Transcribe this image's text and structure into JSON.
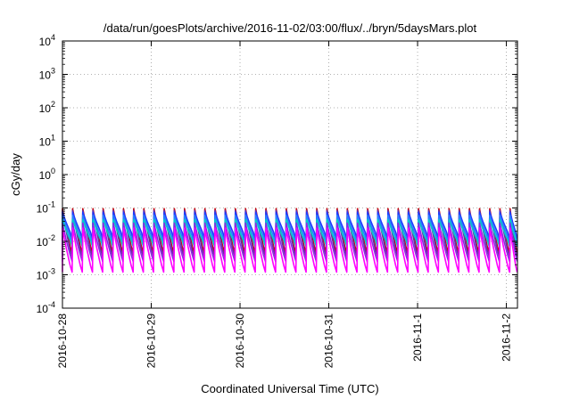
{
  "chart_data": {
    "type": "line",
    "title": "/data/run/goesPlots/archive/2016-11-02/03:00/flux/../bryn/5daysMars.plot",
    "xlabel": "Coordinated Universal Time (UTC)",
    "ylabel": "cGy/day",
    "y_scale": "log",
    "ylim": [
      0.0001,
      10000
    ],
    "x_range_days": [
      "2016-10-28 00:00",
      "2016-11-02 03:00"
    ],
    "grid": true,
    "legend": "none",
    "y_ticks": [
      {
        "exp": "-4",
        "value": 0.0001
      },
      {
        "exp": "-3",
        "value": 0.001
      },
      {
        "exp": "-2",
        "value": 0.01
      },
      {
        "exp": "-1",
        "value": 0.1
      },
      {
        "exp": "0",
        "value": 1
      },
      {
        "exp": "1",
        "value": 10
      },
      {
        "exp": "2",
        "value": 100
      },
      {
        "exp": "3",
        "value": 1000
      },
      {
        "exp": "4",
        "value": 10000
      }
    ],
    "x_ticks": [
      "2016-10-28",
      "2016-10-29",
      "2016-10-30",
      "2016-10-31",
      "2016-11-1",
      "2016-11-2"
    ],
    "cycle_peaks_x": [
      "2016-10-28 00:00",
      "2016-10-28 02:45",
      "2016-10-28 05:30",
      "2016-10-28 08:15",
      "2016-10-28 11:00",
      "2016-10-28 13:45",
      "2016-10-28 16:30",
      "2016-10-28 19:15",
      "2016-10-28 22:00",
      "2016-10-29 00:45",
      "2016-10-29 03:30",
      "2016-10-29 06:15",
      "2016-10-29 09:00",
      "2016-10-29 11:45",
      "2016-10-29 14:30",
      "2016-10-29 17:15",
      "2016-10-29 20:00",
      "2016-10-29 22:45",
      "2016-10-30 01:30",
      "2016-10-30 04:15",
      "2016-10-30 07:00",
      "2016-10-30 09:45",
      "2016-10-30 12:30",
      "2016-10-30 15:15",
      "2016-10-30 18:00",
      "2016-10-30 20:45",
      "2016-10-30 23:30",
      "2016-10-31 02:15",
      "2016-10-31 05:00",
      "2016-10-31 07:45",
      "2016-10-31 10:30",
      "2016-10-31 13:15",
      "2016-10-31 16:00",
      "2016-10-31 18:45",
      "2016-10-31 21:30",
      "2016-11-01 00:15",
      "2016-11-01 03:00",
      "2016-11-01 05:45",
      "2016-11-01 08:30",
      "2016-11-01 11:15",
      "2016-11-01 14:00",
      "2016-11-01 16:45",
      "2016-11-01 19:30",
      "2016-11-01 22:15",
      "2016-11-02 01:00"
    ],
    "series": [
      {
        "color": "#cc0000",
        "peak": 0.095,
        "trough": 0.0045
      },
      {
        "color": "#6b2fa0",
        "peak": 0.085,
        "trough": 0.0035
      },
      {
        "color": "#1e3cff",
        "peak": 0.075,
        "trough": 0.012
      },
      {
        "color": "#2a7fff",
        "peak": 0.06,
        "trough": 0.009
      },
      {
        "color": "#00cccc",
        "peak": 0.045,
        "trough": 0.007
      },
      {
        "color": "#8a2be2",
        "peak": 0.035,
        "trough": 0.0025
      },
      {
        "color": "#ff00ff",
        "peak": 0.025,
        "trough": 0.0012
      }
    ]
  }
}
